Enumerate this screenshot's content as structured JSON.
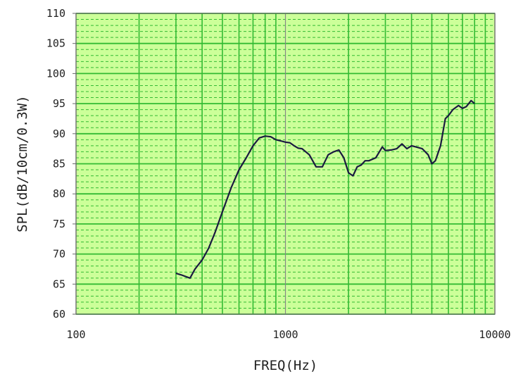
{
  "chart_data": {
    "type": "line",
    "title": "",
    "xlabel": "FREQ(Hz)",
    "ylabel": "SPL(dB/10cm/0.3W)",
    "xscale": "log",
    "xlim": [
      100,
      10000
    ],
    "ylim": [
      60,
      110
    ],
    "x_tick_labels": [
      "100",
      "1000",
      "10000"
    ],
    "y_tick_labels": [
      "60",
      "65",
      "70",
      "75",
      "80",
      "85",
      "90",
      "95",
      "100",
      "105",
      "110"
    ],
    "grid": true,
    "background_color": "#ccff99",
    "grid_major_color": "#33bb33",
    "grid_minor_color": "#33bb33",
    "line_color": "#1a1a40",
    "line_highlight_color": "#2233dd",
    "series": [
      {
        "x": [
          300,
          320,
          350,
          370,
          400,
          430,
          460,
          500,
          550,
          600,
          650,
          700,
          750,
          800,
          850,
          900,
          950,
          1000,
          1050,
          1100,
          1150,
          1200,
          1300,
          1400,
          1500,
          1600,
          1700,
          1800,
          1900,
          2000,
          2100,
          2200,
          2300,
          2400,
          2500,
          2700,
          2900,
          3000,
          3200,
          3400,
          3600,
          3800,
          4000,
          4200,
          4500,
          4800,
          5000,
          5200,
          5500,
          5800,
          6000,
          6300,
          6700,
          7000,
          7300,
          7700,
          8000
        ],
        "values": [
          66.8,
          66.5,
          66.0,
          67.5,
          69.0,
          71.0,
          73.5,
          77.0,
          81.0,
          84.0,
          86.0,
          88.0,
          89.3,
          89.6,
          89.5,
          89.0,
          88.8,
          88.6,
          88.5,
          88.0,
          87.6,
          87.5,
          86.5,
          84.5,
          84.5,
          86.5,
          87.0,
          87.3,
          86.0,
          83.5,
          83.0,
          84.5,
          84.8,
          85.5,
          85.5,
          86.0,
          87.8,
          87.2,
          87.3,
          87.5,
          88.3,
          87.5,
          88.0,
          87.8,
          87.5,
          86.5,
          85.0,
          85.5,
          88.0,
          92.5,
          93.0,
          94.0,
          94.7,
          94.2,
          94.5,
          95.5,
          95.0
        ]
      }
    ]
  }
}
